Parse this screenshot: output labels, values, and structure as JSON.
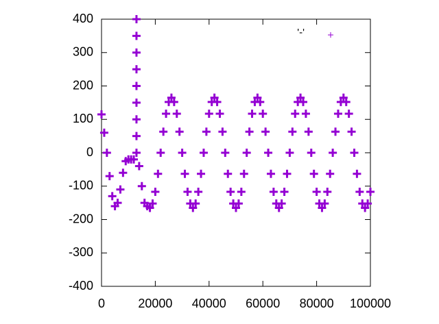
{
  "chart_data": {
    "type": "scatter",
    "xlim": [
      0,
      100000
    ],
    "ylim": [
      -400,
      400
    ],
    "xticks": [
      0,
      20000,
      40000,
      60000,
      80000,
      100000
    ],
    "yticks": [
      -400,
      -300,
      -200,
      -100,
      0,
      100,
      200,
      300,
      400
    ],
    "legend": "top-right",
    "series": [
      {
        "name": "'-'",
        "color": "#9400d3",
        "x": [
          0,
          1000,
          2000,
          3000,
          4000,
          5000,
          6000,
          7000,
          8000,
          9000,
          10000,
          11000,
          12000,
          13000,
          13000,
          13000,
          13000,
          13000,
          13000,
          13000,
          13000,
          13000,
          14000,
          15000,
          16000,
          17000,
          18000,
          19000,
          20000,
          21000,
          22000,
          23000,
          24000,
          25000,
          26000,
          27000,
          28000,
          29000,
          30000,
          31000,
          32000,
          33000,
          34000,
          35000,
          36000,
          37000,
          38000,
          39000,
          40000,
          41000,
          42000,
          43000,
          44000,
          45000,
          46000,
          47000,
          48000,
          49000,
          50000,
          51000,
          52000,
          53000,
          54000,
          55000,
          56000,
          57000,
          58000,
          59000,
          60000,
          61000,
          62000,
          63000,
          64000,
          65000,
          66000,
          67000,
          68000,
          69000,
          70000,
          71000,
          72000,
          73000,
          74000,
          75000,
          76000,
          77000,
          78000,
          79000,
          80000,
          81000,
          82000,
          83000,
          84000,
          85000,
          86000,
          87000,
          88000,
          89000,
          90000,
          91000,
          92000,
          93000,
          94000,
          95000,
          96000,
          97000,
          98000,
          99000,
          100000
        ],
        "values": [
          115,
          60,
          0,
          -70,
          -130,
          -160,
          -150,
          -110,
          -60,
          -25,
          -20,
          -20,
          -20,
          0,
          50,
          100,
          150,
          200,
          250,
          300,
          350,
          400,
          -40,
          -100,
          -150,
          -160,
          -165,
          -152,
          -117,
          -63,
          0,
          63,
          117,
          152,
          165,
          152,
          117,
          63,
          0,
          -63,
          -117,
          -152,
          -165,
          -152,
          -117,
          -63,
          0,
          63,
          117,
          152,
          165,
          152,
          117,
          63,
          0,
          -63,
          -117,
          -152,
          -165,
          -152,
          -117,
          -63,
          0,
          63,
          117,
          152,
          165,
          152,
          117,
          63,
          0,
          -63,
          -117,
          -152,
          -165,
          -152,
          -117,
          -63,
          0,
          63,
          117,
          152,
          165,
          152,
          117,
          63,
          0,
          -63,
          -117,
          -152,
          -165,
          -152,
          -117,
          -63,
          0,
          63,
          117,
          152,
          165,
          152,
          117,
          63,
          0,
          -63,
          -117,
          -152,
          -165,
          -152,
          -117
        ]
      }
    ]
  }
}
